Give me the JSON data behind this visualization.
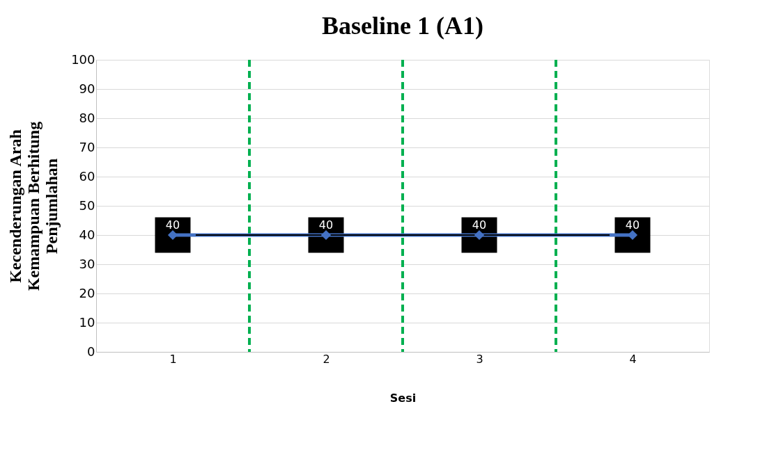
{
  "chart_data": {
    "type": "line",
    "title": "Baseline 1 (A1)",
    "xlabel": "Sesi",
    "ylabel": "Kecenderungan Arah\nKemampuan Berhitung\nPenjumlahan",
    "x": [
      1,
      2,
      3,
      4
    ],
    "xlim": [
      0.5,
      4.5
    ],
    "xticks": [
      1,
      2,
      3,
      4
    ],
    "ylim": [
      0,
      100
    ],
    "yticks": [
      0,
      10,
      20,
      30,
      40,
      50,
      60,
      70,
      80,
      90,
      100
    ],
    "series": [
      {
        "color": "#4472c4",
        "values": [
          40,
          40,
          40,
          40
        ],
        "marker": "diamond",
        "value_labels": [
          "40",
          "40",
          "40",
          "40"
        ]
      },
      {
        "type": "line",
        "color": "#000000",
        "x": [
          1.15,
          3.85
        ],
        "values": [
          40,
          40
        ],
        "marker": "none"
      }
    ],
    "grid": "y",
    "ref_lines": [
      {
        "axis": "x",
        "value": 1.5,
        "color": "#00b050",
        "line_style": "dashed"
      },
      {
        "axis": "x",
        "value": 2.5,
        "color": "#00b050",
        "line_style": "dashed"
      },
      {
        "axis": "x",
        "value": 3.5,
        "color": "#00b050",
        "line_style": "dashed"
      }
    ]
  }
}
